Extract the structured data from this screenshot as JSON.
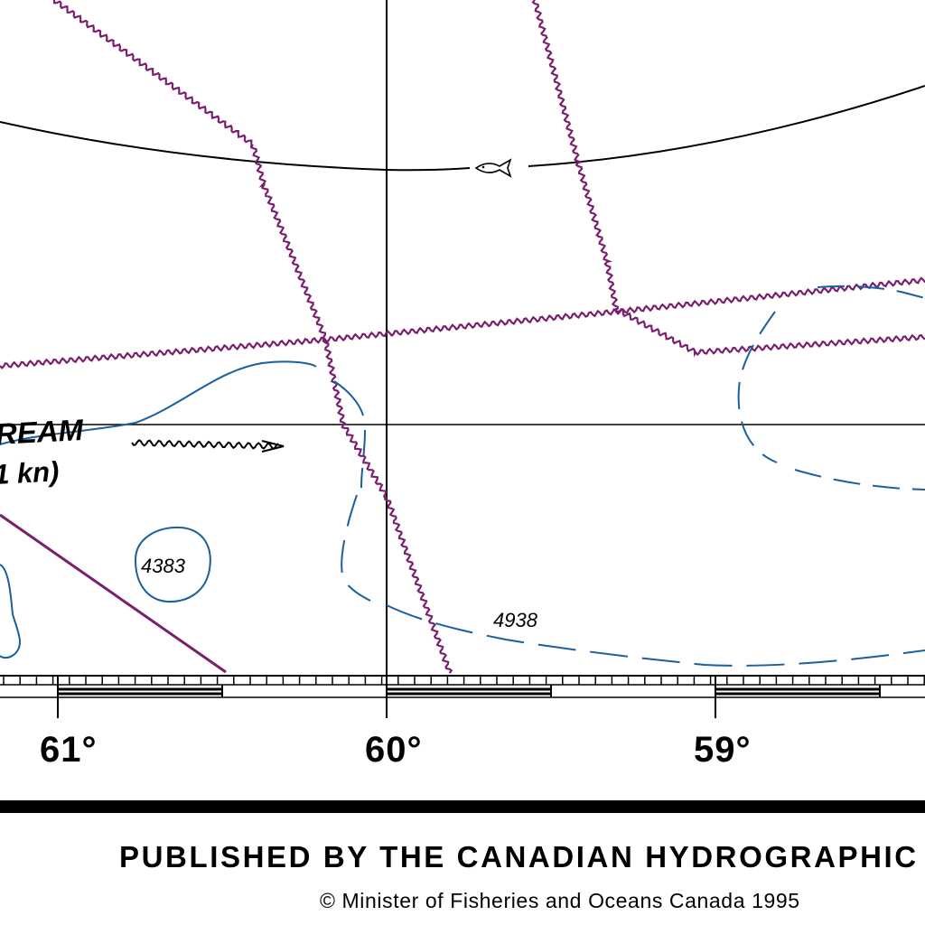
{
  "longitude_labels": {
    "lon61": "61°",
    "lon60": "60°",
    "lon59": "59°"
  },
  "current": {
    "name_fragment": "REAM",
    "speed_fragment": "1 kn)"
  },
  "soundings": {
    "depth_a": "4383",
    "depth_b": "4938"
  },
  "footer": {
    "publisher": "PUBLISHED BY THE CANADIAN HYDROGRAPHIC",
    "copyright": "© Minister of Fisheries and Oceans Canada 1995"
  },
  "colors": {
    "cable_line": "#7a1f6e",
    "depth_contour": "#1a5fa0",
    "graticule": "#000000"
  },
  "symbols": [
    "fish-haven-icon",
    "current-arrow-icon"
  ]
}
